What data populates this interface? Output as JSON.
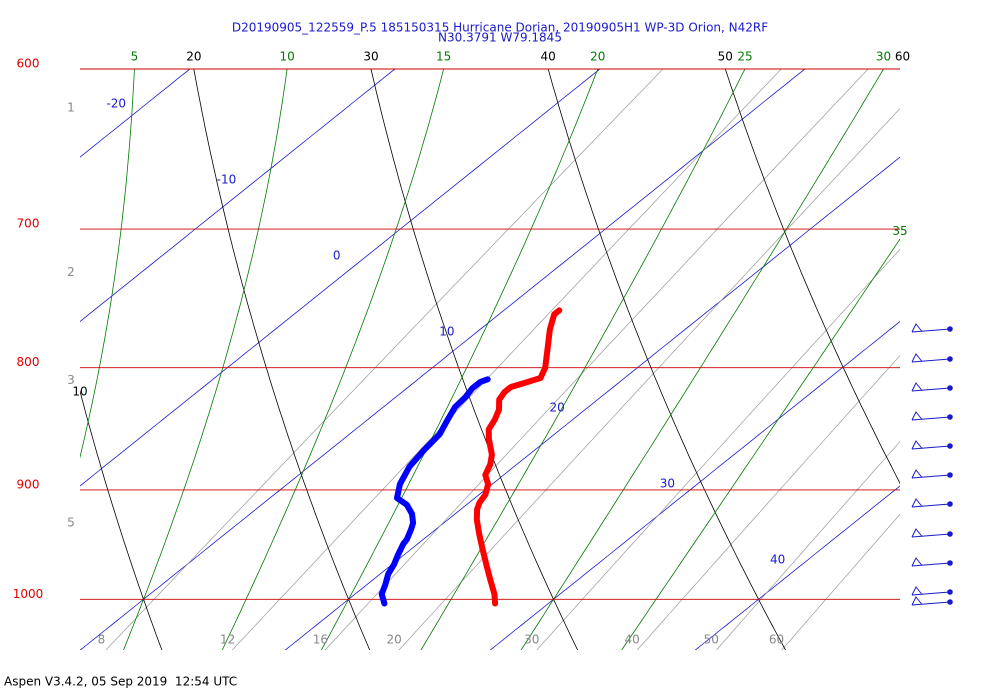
{
  "chart_data": {
    "type": "skewt",
    "title": "D20190905_122559_P.5 185150315 Hurricane Dorian, 20190905H1 WP-3D Orion, N42RF",
    "subtitle": "N30.3791 W79.1845",
    "footer": "Aspen V3.4.2, 05 Sep 2019  12:54 UTC",
    "ylim": [
      1050,
      600
    ],
    "yticks": [
      600,
      700,
      800,
      900,
      1000
    ],
    "log_y": true,
    "xlim": [
      6.9,
      46.9
    ],
    "isotherms": [
      -20,
      -10,
      0,
      10,
      20,
      30,
      40
    ],
    "dry_adiabats": [
      10,
      20,
      30,
      40,
      50,
      60
    ],
    "moist_adiabats": [
      5,
      10,
      15,
      20,
      25,
      30,
      35
    ],
    "mixing_ratios": [
      8,
      12,
      16,
      20,
      30,
      40,
      50,
      60
    ],
    "level_labels": {
      "labels": [
        "1",
        "2",
        "3",
        "5"
      ],
      "pressures": [
        623,
        730,
        810,
        929
      ]
    },
    "series": [
      {
        "color": "#ff0000",
        "pressure": [
          1004,
          995,
          981,
          967,
          953,
          939,
          926,
          917,
          911,
          904,
          895,
          887,
          878,
          870,
          857,
          849,
          841,
          833,
          825,
          819,
          815,
          812,
          808,
          800,
          786,
          771,
          760,
          757
        ],
        "values": [
          27.4,
          26.8,
          25.7,
          24.6,
          23.5,
          22.4,
          21.4,
          20.8,
          20.5,
          20.3,
          19.8,
          19.1,
          18.7,
          18.2,
          17.1,
          16.5,
          16.2,
          15.8,
          15.2,
          15.0,
          15.0,
          15.4,
          15.9,
          15.5,
          14.5,
          13.4,
          12.7,
          12.7
        ]
      },
      {
        "color": "#0000ff",
        "pressure": [
          1004,
          995,
          986,
          976,
          967,
          958,
          948,
          944,
          935,
          929,
          921,
          913,
          907,
          895,
          880,
          866,
          853,
          841,
          831,
          823,
          816,
          811,
          809
        ],
        "values": [
          22.0,
          21.3,
          20.9,
          20.4,
          20.1,
          19.7,
          19.3,
          19.2,
          18.8,
          18.5,
          17.9,
          17.1,
          16.2,
          15.5,
          14.9,
          14.6,
          14.4,
          13.9,
          13.5,
          13.4,
          13.2,
          13.2,
          13.4
        ]
      }
    ]
  }
}
